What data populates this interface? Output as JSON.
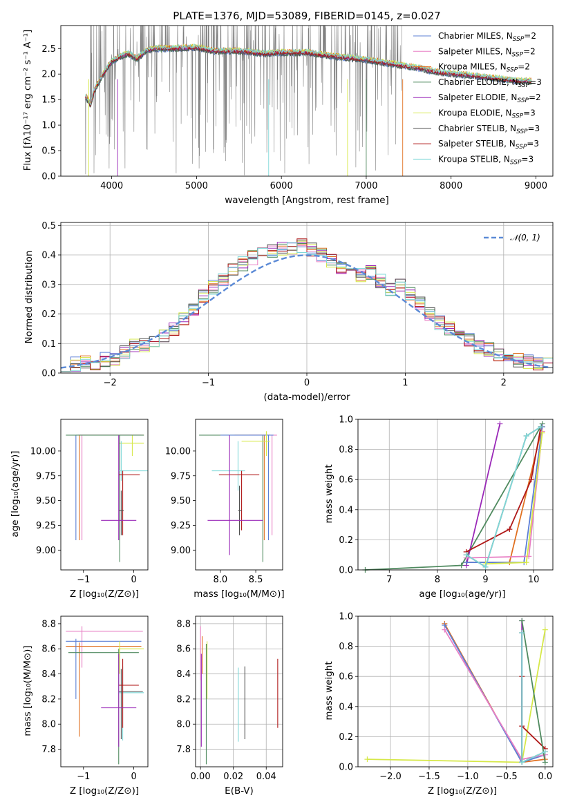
{
  "chart_data": [
    {
      "type": "line",
      "title": "PLATE=1376, MJD=53089, FIBERID=0145, z=0.027",
      "xlabel": "wavelength [Angstrom, rest frame]",
      "ylabel": "Flux [fλ10⁻¹⁷ erg cm⁻² s⁻¹ A⁻¹]",
      "xlim": [
        3400,
        9200
      ],
      "ylim": [
        0,
        2.95
      ],
      "xticks": [
        "4000",
        "5000",
        "6000",
        "7000",
        "8000",
        "9000"
      ],
      "yticks": [
        "0.0",
        "0.5",
        "1.0",
        "1.5",
        "2.0",
        "2.5"
      ],
      "legend_position": "upper right",
      "series": [
        {
          "name": "Chabrier MILES, N_SSP=2",
          "color": "#5b7fd6"
        },
        {
          "name": "Salpeter MILES, N_SSP=2",
          "color": "#e87fc4"
        },
        {
          "name": "Kroupa MILES, N_SSP=2",
          "color": "#e07020"
        },
        {
          "name": "Chabrier ELODIE, N_SSP=3",
          "color": "#4f8a5f"
        },
        {
          "name": "Salpeter ELODIE, N_SSP=2",
          "color": "#9a28b8"
        },
        {
          "name": "Kroupa ELODIE, N_SSP=3",
          "color": "#d6e848"
        },
        {
          "name": "Chabrier STELIB, N_SSP=3",
          "color": "#505050"
        },
        {
          "name": "Salpeter STELIB, N_SSP=3",
          "color": "#b01818"
        },
        {
          "name": "Kroupa STELIB, N_SSP=3",
          "color": "#7fd8d8"
        }
      ],
      "legend_labels": [
        {
          "base": "Chabrier MILES, N",
          "sub": "SSP",
          "tail": "=2"
        },
        {
          "base": "Salpeter MILES, N",
          "sub": "SSP",
          "tail": "=2"
        },
        {
          "base": "Kroupa MILES, N",
          "sub": "SSP",
          "tail": "=2"
        },
        {
          "base": "Chabrier ELODIE, N",
          "sub": "SSP",
          "tail": "=3"
        },
        {
          "base": "Salpeter ELODIE, N",
          "sub": "SSP",
          "tail": "=2"
        },
        {
          "base": "Kroupa ELODIE, N",
          "sub": "SSP",
          "tail": "=3"
        },
        {
          "base": "Chabrier STELIB, N",
          "sub": "SSP",
          "tail": "=3"
        },
        {
          "base": "Salpeter STELIB, N",
          "sub": "SSP",
          "tail": "=3"
        },
        {
          "base": "Kroupa STELIB, N",
          "sub": "SSP",
          "tail": "=3"
        }
      ],
      "continuum": [
        [
          3680,
          1.6
        ],
        [
          3750,
          1.4
        ],
        [
          3800,
          1.7
        ],
        [
          3900,
          2.0
        ],
        [
          4000,
          2.25
        ],
        [
          4100,
          2.35
        ],
        [
          4200,
          2.4
        ],
        [
          4300,
          2.3
        ],
        [
          4400,
          2.45
        ],
        [
          4500,
          2.5
        ],
        [
          4700,
          2.5
        ],
        [
          5000,
          2.52
        ],
        [
          5200,
          2.45
        ],
        [
          5500,
          2.45
        ],
        [
          5800,
          2.4
        ],
        [
          6000,
          2.42
        ],
        [
          6300,
          2.42
        ],
        [
          6600,
          2.35
        ],
        [
          7000,
          2.28
        ],
        [
          7300,
          2.2
        ],
        [
          7600,
          2.12
        ],
        [
          7900,
          2.02
        ],
        [
          8200,
          1.98
        ],
        [
          8500,
          1.92
        ],
        [
          8750,
          1.87
        ],
        [
          8950,
          1.86
        ]
      ],
      "data_range": [
        3690,
        7420
      ]
    },
    {
      "type": "line",
      "xlabel": "(data-model)/error",
      "ylabel": "Normed distribution",
      "xlim": [
        -2.5,
        2.5
      ],
      "ylim": [
        0,
        0.51
      ],
      "xticks": [
        "−2",
        "−1",
        "0",
        "1",
        "2"
      ],
      "yticks": [
        "0.0",
        "0.1",
        "0.2",
        "0.3",
        "0.4",
        "0.5"
      ],
      "grid": true,
      "legend": "𝒩(0, 1)",
      "legend_position": "upper right",
      "hist_base": [
        0.02,
        0.03,
        0.04,
        0.035,
        0.045,
        0.05,
        0.07,
        0.09,
        0.095,
        0.1,
        0.13,
        0.15,
        0.18,
        0.22,
        0.26,
        0.29,
        0.32,
        0.35,
        0.37,
        0.39,
        0.4,
        0.41,
        0.42,
        0.42,
        0.43,
        0.42,
        0.4,
        0.38,
        0.36,
        0.35,
        0.33,
        0.34,
        0.31,
        0.28,
        0.3,
        0.27,
        0.24,
        0.2,
        0.17,
        0.15,
        0.12,
        0.11,
        0.09,
        0.08,
        0.06,
        0.05,
        0.045,
        0.04,
        0.035,
        0.03
      ]
    },
    {
      "type": "scatter",
      "xlabel": "Z [log₁₀(Z/Z⊙)]",
      "ylabel": "age  [log₁₀(age/yr)]",
      "xlim": [
        -1.45,
        0.28
      ],
      "ylim": [
        8.8,
        10.32
      ],
      "xticks": [
        "−1",
        "0"
      ],
      "yticks": [
        "9.00",
        "9.25",
        "9.50",
        "9.75",
        "10.00"
      ]
    },
    {
      "type": "scatter",
      "xlabel": "mass [log₁₀(M/M⊙)]",
      "xlim": [
        7.65,
        8.88
      ],
      "ylim": [
        8.8,
        10.32
      ],
      "xticks": [
        "8.0",
        "8.5"
      ],
      "yticks": [
        "9.00",
        "9.25",
        "9.50",
        "9.75",
        "10.00"
      ]
    },
    {
      "type": "line",
      "xlabel": "age  [log₁₀(age/yr)]",
      "ylabel": "mass weight",
      "xlim": [
        6.35,
        10.4
      ],
      "ylim": [
        0,
        1.0
      ],
      "xticks": [
        "7",
        "8",
        "9",
        "10"
      ],
      "yticks": [
        "0.0",
        "0.2",
        "0.4",
        "0.6",
        "0.8",
        "1.0"
      ],
      "grid": true,
      "series": [
        {
          "name": "Chabrier ELODIE",
          "color": "#4f8a5f",
          "x": [
            6.5,
            8.5,
            10.18
          ],
          "y": [
            0.0,
            0.03,
            0.97
          ]
        },
        {
          "name": "Salpeter ELODIE",
          "color": "#9a28b8",
          "x": [
            8.6,
            9.3
          ],
          "y": [
            0.03,
            0.97
          ]
        },
        {
          "name": "Kroupa MILES",
          "color": "#e07020",
          "x": [
            8.6,
            9.5,
            10.18
          ],
          "y": [
            0.05,
            0.05,
            0.95
          ]
        },
        {
          "name": "Chabrier MILES",
          "color": "#5b7fd6",
          "x": [
            8.6,
            9.8,
            10.18
          ],
          "y": [
            0.05,
            0.05,
            0.95
          ]
        },
        {
          "name": "Salpeter MILES",
          "color": "#e87fc4",
          "x": [
            8.6,
            9.9,
            10.18
          ],
          "y": [
            0.08,
            0.09,
            0.92
          ]
        },
        {
          "name": "Kroupa ELODIE",
          "color": "#d6e848",
          "x": [
            9.0,
            9.85,
            10.18
          ],
          "y": [
            0.04,
            0.05,
            0.91
          ]
        },
        {
          "name": "Salpeter STELIB",
          "color": "#b01818",
          "x": [
            8.6,
            9.5,
            9.95,
            10.15
          ],
          "y": [
            0.12,
            0.27,
            0.6,
            0.95
          ]
        },
        {
          "name": "Chabrier STELIB",
          "color": "#505050",
          "x": [
            8.6,
            9.0,
            9.85,
            10.15
          ],
          "y": [
            0.1,
            0.02,
            0.89,
            0.95
          ]
        },
        {
          "name": "Kroupa STELIB",
          "color": "#7fd8d8",
          "x": [
            8.6,
            9.0,
            9.85,
            10.15
          ],
          "y": [
            0.1,
            0.02,
            0.89,
            0.95
          ]
        }
      ]
    },
    {
      "type": "scatter",
      "xlabel": "Z [log₁₀(Z/Z⊙)]",
      "ylabel": "mass [log₁₀(M/M⊙)]",
      "xlim": [
        -1.45,
        0.28
      ],
      "ylim": [
        7.66,
        8.86
      ],
      "xticks": [
        "−1",
        "0"
      ],
      "yticks": [
        "7.8",
        "8.0",
        "8.2",
        "8.4",
        "8.6",
        "8.8"
      ]
    },
    {
      "type": "scatter",
      "xlabel": "E(B-V)",
      "xlim": [
        -0.003,
        0.05
      ],
      "ylim": [
        7.66,
        8.86
      ],
      "xticks": [
        "0.00",
        "0.02",
        "0.04"
      ],
      "yticks": [
        "7.8",
        "8.0",
        "8.2",
        "8.4",
        "8.6",
        "8.8"
      ],
      "grid": true,
      "bars": [
        {
          "color": "#e87fc4",
          "x": 0.0,
          "y": [
            8.35,
            8.78
          ]
        },
        {
          "color": "#e07020",
          "x": 0.001,
          "y": [
            8.4,
            8.7
          ]
        },
        {
          "color": "#9a28b8",
          "x": 0.0005,
          "y": [
            7.82,
            8.56
          ]
        },
        {
          "color": "#d6e848",
          "x": 0.004,
          "y": [
            8.2,
            8.66
          ]
        },
        {
          "color": "#4f8a5f",
          "x": 0.0035,
          "y": [
            7.68,
            8.64
          ]
        },
        {
          "color": "#7fd8d8",
          "x": 0.023,
          "y": [
            7.86,
            8.45
          ]
        },
        {
          "color": "#505050",
          "x": 0.027,
          "y": [
            7.88,
            8.46
          ]
        },
        {
          "color": "#b01818",
          "x": 0.047,
          "y": [
            7.97,
            8.52
          ]
        }
      ]
    },
    {
      "type": "line",
      "xlabel": "Z [log₁₀(Z/Z⊙)]",
      "ylabel": "mass weight",
      "xlim": [
        -2.42,
        0.1
      ],
      "ylim": [
        0,
        1.0
      ],
      "xticks": [
        "−2.0",
        "−1.5",
        "−1.0",
        "−0.5",
        "0.0"
      ],
      "yticks": [
        "0.0",
        "0.2",
        "0.4",
        "0.6",
        "0.8",
        "1.0"
      ],
      "grid": true,
      "series": [
        {
          "name": "Kroupa ELODIE",
          "color": "#d6e848",
          "x": [
            -2.3,
            -0.3,
            0.0
          ],
          "y": [
            0.05,
            0.03,
            0.91
          ]
        },
        {
          "name": "Kroupa MILES",
          "color": "#e07020",
          "x": [
            -1.3,
            -0.3,
            0.0
          ],
          "y": [
            0.95,
            0.03,
            0.05
          ]
        },
        {
          "name": "Chabrier MILES",
          "color": "#5b7fd6",
          "x": [
            -1.3,
            -0.3,
            0.0
          ],
          "y": [
            0.94,
            0.03,
            0.08
          ]
        },
        {
          "name": "Salpeter MILES",
          "color": "#e87fc4",
          "x": [
            -1.3,
            -0.3,
            0.0
          ],
          "y": [
            0.91,
            0.05,
            0.08
          ]
        },
        {
          "name": "Salpeter STELIB",
          "color": "#b01818",
          "x": [
            -0.3,
            -0.3,
            0.0
          ],
          "y": [
            0.6,
            0.27,
            0.12
          ]
        },
        {
          "name": "Salpeter ELODIE",
          "color": "#9a28b8",
          "x": [
            -0.3,
            -0.3
          ],
          "y": [
            0.97,
            0.03
          ]
        },
        {
          "name": "Chabrier ELODIE",
          "color": "#4f8a5f",
          "x": [
            -0.3,
            0.0
          ],
          "y": [
            0.97,
            0.03
          ]
        },
        {
          "name": "Chabrier STELIB",
          "color": "#505050",
          "x": [
            -0.3,
            -0.3,
            0.0
          ],
          "y": [
            0.89,
            0.03,
            0.1
          ]
        },
        {
          "name": "Kroupa STELIB",
          "color": "#7fd8d8",
          "x": [
            -0.3,
            -0.3,
            0.0
          ],
          "y": [
            0.89,
            0.03,
            0.1
          ]
        }
      ]
    }
  ]
}
